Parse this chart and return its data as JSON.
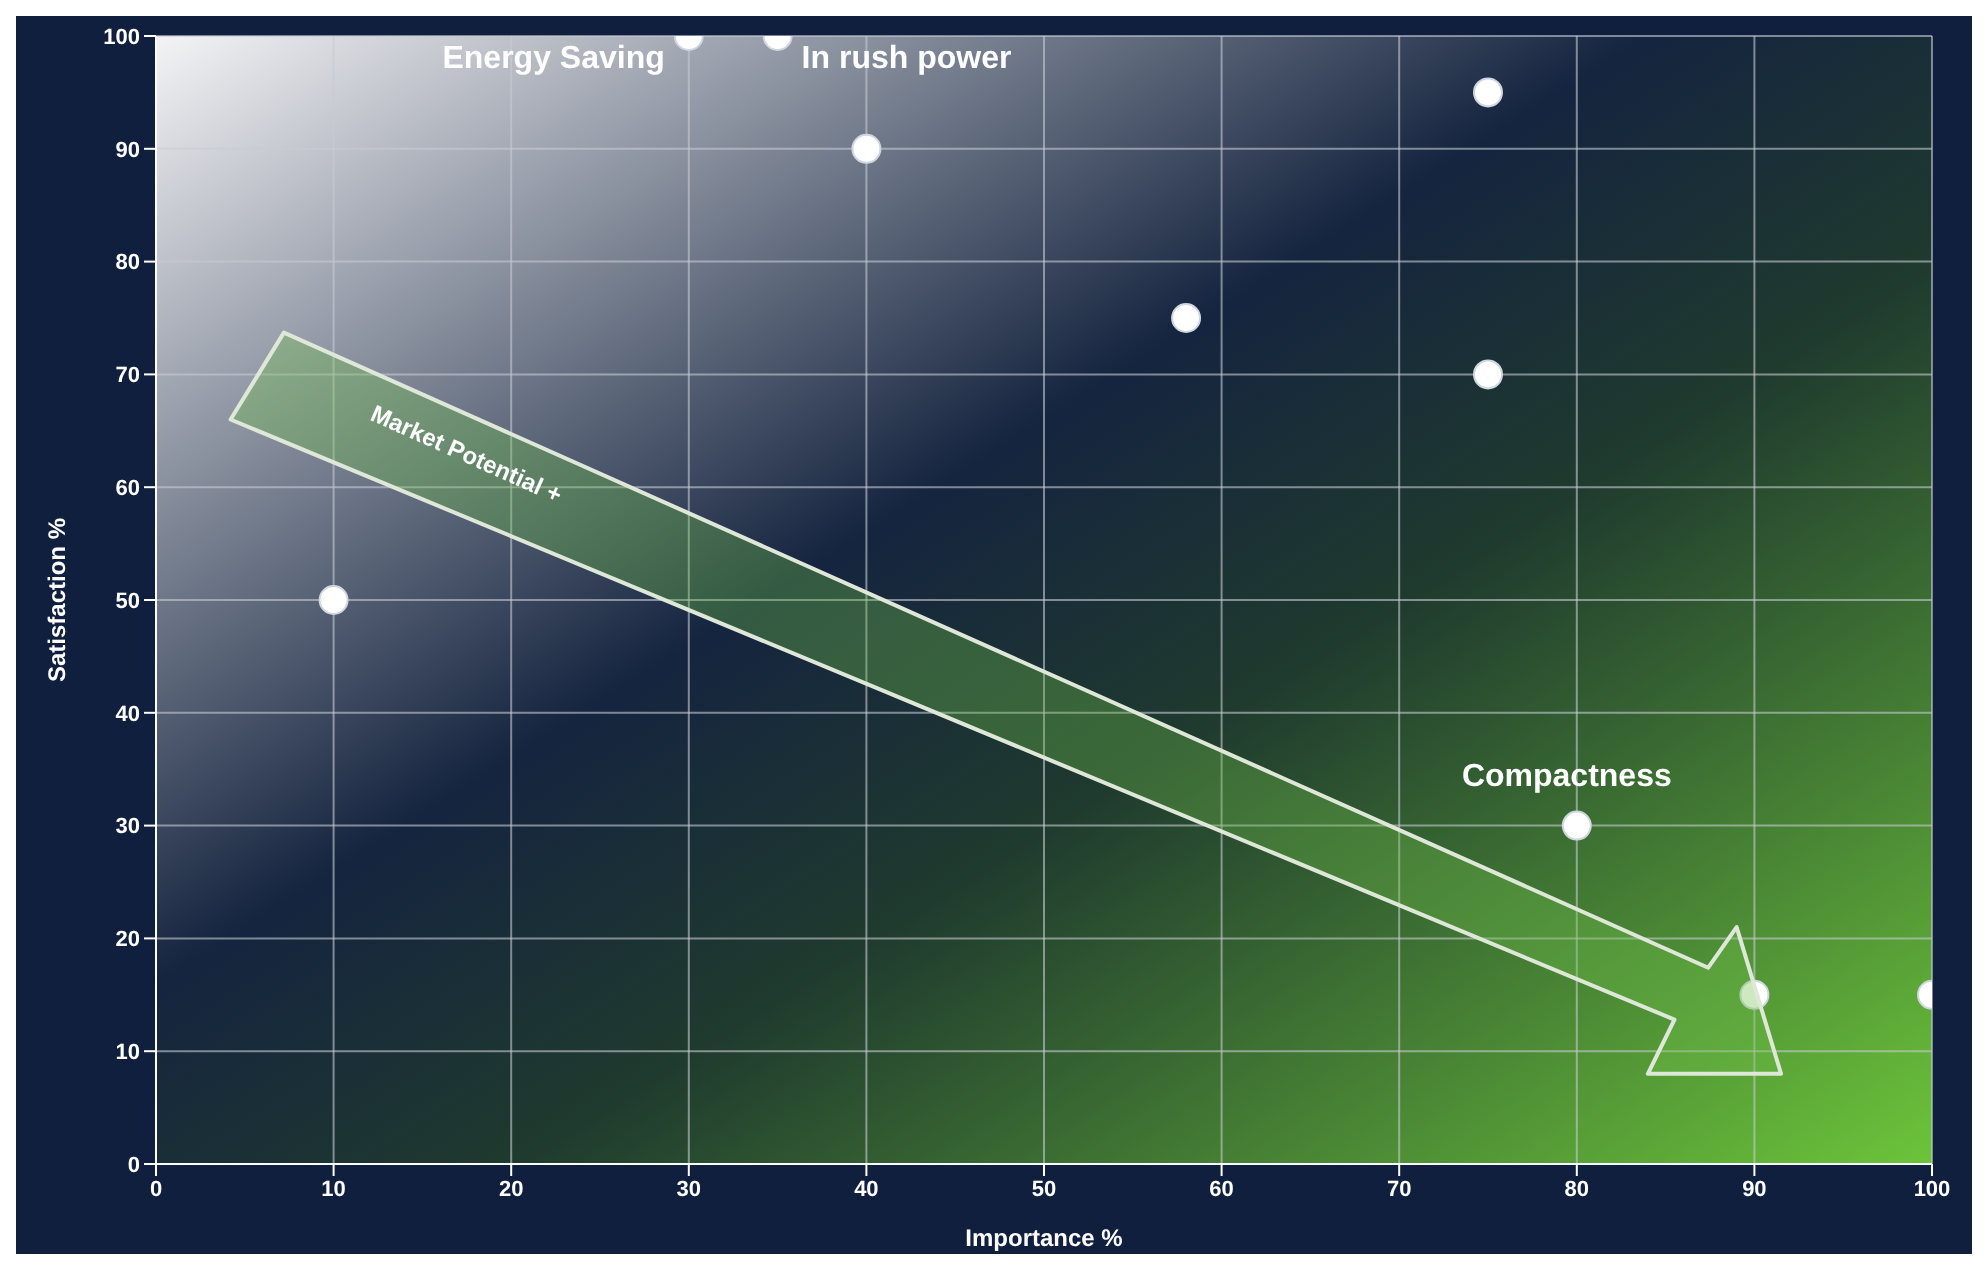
{
  "chart_data": {
    "type": "scatter",
    "xlabel": "Importance %",
    "ylabel": "Satisfaction %",
    "x": [
      10,
      30,
      35,
      40,
      58,
      75,
      75,
      80,
      90,
      100
    ],
    "values": [
      50,
      100,
      100,
      90,
      75,
      95,
      70,
      30,
      15,
      15
    ],
    "color": "#ffffff",
    "marker": "circle",
    "xlim": [
      0,
      100
    ],
    "ylim": [
      0,
      100
    ],
    "xticks": [
      0,
      10,
      20,
      30,
      40,
      50,
      60,
      70,
      80,
      90,
      100
    ],
    "yticks": [
      0,
      10,
      20,
      30,
      40,
      50,
      60,
      70,
      80,
      90,
      100
    ],
    "grid": true,
    "annotations": [
      {
        "text": "Energy Saving",
        "x": 30,
        "y": 100
      },
      {
        "text": "In rush power",
        "x": 35,
        "y": 100
      },
      {
        "text": "Compactness",
        "x": 80,
        "y": 30
      },
      "Market Potential +"
    ]
  }
}
